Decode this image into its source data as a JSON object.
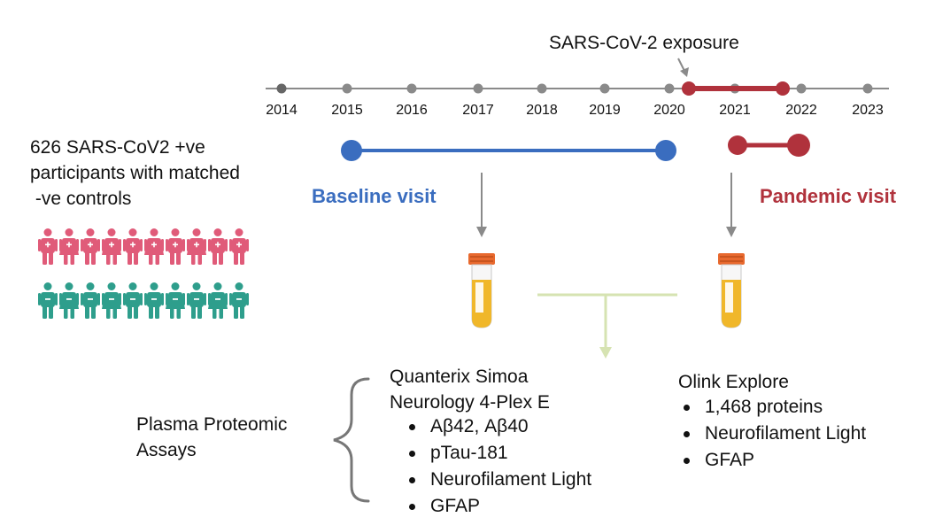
{
  "exposure_label": "SARS-CoV-2 exposure",
  "timeline": {
    "years": [
      "2014",
      "2015",
      "2016",
      "2017",
      "2018",
      "2019",
      "2020",
      "2021",
      "2022",
      "2023"
    ]
  },
  "cohort": {
    "lines": [
      "626 SARS-CoV2 +ve",
      "participants with matched",
      " -ve controls"
    ],
    "positive_color": "#e05b79",
    "negative_color": "#2e9e8c",
    "positive_row": [
      "m",
      "f",
      "m",
      "f",
      "m",
      "f",
      "m",
      "f",
      "m",
      "m"
    ],
    "negative_row": [
      "m",
      "f",
      "m",
      "f",
      "m",
      "m",
      "f",
      "m",
      "f",
      "m"
    ]
  },
  "visits": {
    "baseline": {
      "label": "Baseline visit",
      "color": "#3a6dbf"
    },
    "pandemic": {
      "label": "Pandemic visit",
      "color": "#b0323c"
    }
  },
  "assays": {
    "group_label": [
      "Plasma Proteomic",
      "Assays"
    ],
    "quanterix": {
      "title": [
        "Quanterix Simoa",
        "Neurology 4-Plex E"
      ],
      "items": [
        "Aβ42, Aβ40",
        "pTau-181",
        "Neurofilament Light",
        "GFAP"
      ]
    },
    "olink": {
      "title": "Olink Explore",
      "items": [
        "1,468 proteins",
        "Neurofilament Light",
        "GFAP"
      ]
    }
  },
  "colors": {
    "timeline": "#8a8a8a",
    "arrow": "#8a8a8a",
    "connector": "#d6e3b2",
    "tube_cap": "#e8692e",
    "tube_fluid": "#f0b72a"
  }
}
